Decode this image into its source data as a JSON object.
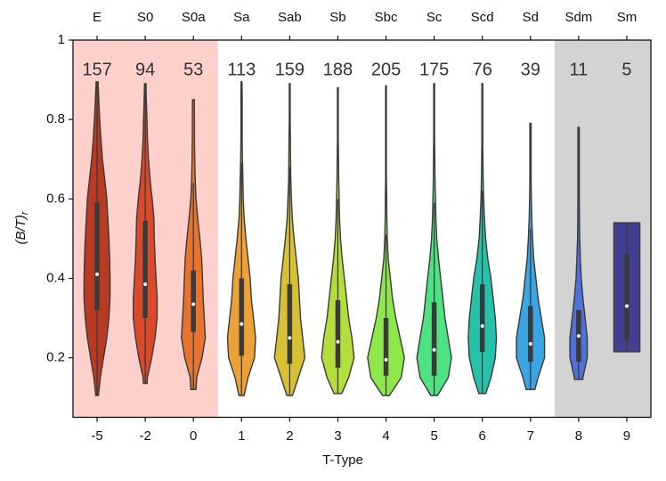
{
  "chart_data": {
    "type": "violin",
    "xlabel": "T-Type",
    "ylabel": "(B/T)",
    "ylabel_subscript": "r",
    "categories": [
      "-5",
      "-2",
      "0",
      "1",
      "2",
      "3",
      "4",
      "5",
      "6",
      "7",
      "8",
      "9"
    ],
    "top_labels": [
      "E",
      "S0",
      "S0a",
      "Sa",
      "Sab",
      "Sb",
      "Sbc",
      "Sc",
      "Scd",
      "Sd",
      "Sdm",
      "Sm"
    ],
    "background": [
      "#fdd0cc",
      "#fdd0cc",
      "#fdd0cc",
      null,
      null,
      null,
      null,
      null,
      null,
      null,
      "#d3d3d3",
      "#d3d3d3"
    ],
    "ylim": [
      0.05,
      1.0
    ],
    "yticks": [
      0.2,
      0.4,
      0.6,
      0.8,
      1.0
    ],
    "density_y": [
      0.1,
      0.15,
      0.2,
      0.25,
      0.3,
      0.35,
      0.4,
      0.45,
      0.5,
      0.55,
      0.6,
      0.65,
      0.7,
      0.75,
      0.8,
      0.85,
      0.9
    ],
    "series": [
      {
        "name": "E",
        "count": 157,
        "color": "#b83a22",
        "min": 0.105,
        "q1": 0.32,
        "median": 0.41,
        "q3": 0.59,
        "max": 0.895,
        "whisker_high": 0.89,
        "density": [
          0.05,
          0.15,
          0.3,
          0.45,
          0.55,
          0.6,
          0.6,
          0.58,
          0.55,
          0.5,
          0.45,
          0.35,
          0.25,
          0.18,
          0.12,
          0.08,
          0.04
        ]
      },
      {
        "name": "S0",
        "count": 94,
        "color": "#d9492a",
        "min": 0.135,
        "q1": 0.3,
        "median": 0.385,
        "q3": 0.545,
        "max": 0.89,
        "whisker_high": 0.89,
        "density": [
          0.05,
          0.1,
          0.3,
          0.45,
          0.55,
          0.55,
          0.5,
          0.45,
          0.42,
          0.4,
          0.32,
          0.22,
          0.15,
          0.1,
          0.08,
          0.05,
          0.03
        ]
      },
      {
        "name": "S0a",
        "count": 53,
        "color": "#e8732f",
        "min": 0.12,
        "q1": 0.265,
        "median": 0.335,
        "q3": 0.42,
        "max": 0.85,
        "whisker_high": 0.64,
        "density": [
          0.1,
          0.15,
          0.4,
          0.55,
          0.5,
          0.45,
          0.42,
          0.38,
          0.3,
          0.2,
          0.12,
          0.08,
          0.06,
          0.05,
          0.05,
          0.04,
          0.04
        ]
      },
      {
        "name": "Sa",
        "count": 113,
        "color": "#eca236",
        "min": 0.105,
        "q1": 0.205,
        "median": 0.285,
        "q3": 0.4,
        "max": 0.895,
        "whisker_high": 0.69,
        "density": [
          0.1,
          0.3,
          0.6,
          0.65,
          0.55,
          0.45,
          0.4,
          0.3,
          0.2,
          0.12,
          0.08,
          0.06,
          0.04,
          0.03,
          0.03,
          0.03,
          0.02
        ]
      },
      {
        "name": "Sab",
        "count": 159,
        "color": "#d8c035",
        "min": 0.105,
        "q1": 0.185,
        "median": 0.25,
        "q3": 0.385,
        "max": 0.89,
        "whisker_high": 0.68,
        "density": [
          0.1,
          0.4,
          0.7,
          0.6,
          0.5,
          0.45,
          0.4,
          0.3,
          0.2,
          0.12,
          0.08,
          0.05,
          0.04,
          0.03,
          0.02,
          0.02,
          0.02
        ]
      },
      {
        "name": "Sb",
        "count": 188,
        "color": "#b3df3d",
        "min": 0.11,
        "q1": 0.175,
        "median": 0.24,
        "q3": 0.345,
        "max": 0.88,
        "whisker_high": 0.6,
        "density": [
          0.1,
          0.5,
          0.75,
          0.65,
          0.5,
          0.4,
          0.3,
          0.2,
          0.12,
          0.08,
          0.06,
          0.04,
          0.03,
          0.02,
          0.02,
          0.02,
          0.02
        ]
      },
      {
        "name": "Sbc",
        "count": 205,
        "color": "#8ee84b",
        "min": 0.105,
        "q1": 0.155,
        "median": 0.195,
        "q3": 0.3,
        "max": 0.885,
        "whisker_high": 0.51,
        "density": [
          0.1,
          0.7,
          0.85,
          0.65,
          0.45,
          0.3,
          0.2,
          0.1,
          0.06,
          0.04,
          0.03,
          0.02,
          0.02,
          0.02,
          0.02,
          0.02,
          0.02
        ]
      },
      {
        "name": "Sc",
        "count": 175,
        "color": "#4ee283",
        "min": 0.105,
        "q1": 0.155,
        "median": 0.22,
        "q3": 0.34,
        "max": 0.89,
        "whisker_high": 0.59,
        "density": [
          0.1,
          0.65,
          0.8,
          0.65,
          0.5,
          0.4,
          0.3,
          0.2,
          0.12,
          0.08,
          0.06,
          0.04,
          0.03,
          0.02,
          0.02,
          0.02,
          0.02
        ]
      },
      {
        "name": "Scd",
        "count": 76,
        "color": "#25c2a9",
        "min": 0.11,
        "q1": 0.215,
        "median": 0.28,
        "q3": 0.385,
        "max": 0.89,
        "whisker_high": 0.62,
        "density": [
          0.1,
          0.4,
          0.6,
          0.65,
          0.6,
          0.5,
          0.4,
          0.25,
          0.15,
          0.1,
          0.06,
          0.04,
          0.03,
          0.02,
          0.02,
          0.02,
          0.02
        ]
      },
      {
        "name": "Sd",
        "count": 39,
        "color": "#3ba4e2",
        "min": 0.12,
        "q1": 0.19,
        "median": 0.235,
        "q3": 0.33,
        "max": 0.79,
        "whisker_high": 0.525,
        "density": [
          0.1,
          0.35,
          0.65,
          0.65,
          0.5,
          0.35,
          0.25,
          0.15,
          0.1,
          0.06,
          0.04,
          0.03,
          0.03,
          0.03,
          0.03,
          0.02,
          0.02
        ]
      },
      {
        "name": "Sdm",
        "count": 11,
        "color": "#4f70d8",
        "min": 0.145,
        "q1": 0.19,
        "median": 0.255,
        "q3": 0.32,
        "max": 0.78,
        "whisker_high": 0.32,
        "density": [
          0.1,
          0.2,
          0.4,
          0.4,
          0.3,
          0.2,
          0.12,
          0.08,
          0.05,
          0.04,
          0.03,
          0.03,
          0.03,
          0.03,
          0.03,
          0.03,
          0.03
        ]
      },
      {
        "name": "Sm",
        "count": 5,
        "color": "#433f92",
        "min": 0.215,
        "q1": 0.245,
        "median": 0.33,
        "q3": 0.46,
        "max": 0.54,
        "whisker_high": 0.54,
        "density": [
          0.6,
          0.6,
          0.6,
          0.6,
          0.6,
          0.6,
          0.6,
          0.6,
          0.6,
          0.6,
          0.6,
          0.6,
          0.6,
          0.6,
          0.6,
          0.6,
          0.6
        ]
      }
    ]
  }
}
